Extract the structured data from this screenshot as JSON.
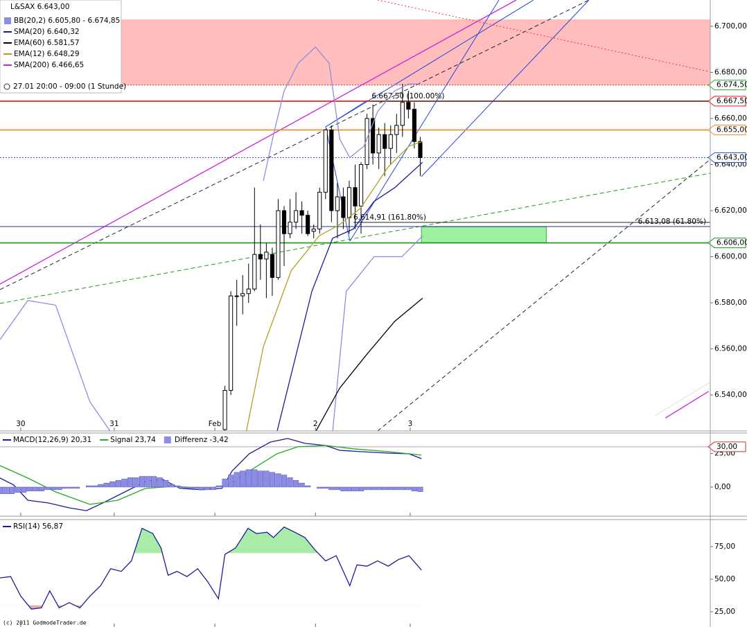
{
  "chart_data": [
    {
      "type": "candlestick",
      "title": "L&SAX 6.643,00",
      "subtitle": "27.01 20:00 - 09:00 (1 Stunde)",
      "xlim": [
        0,
        120
      ],
      "ylim": [
        6524.4,
        6711.4
      ],
      "xticks": [
        {
          "value": 3.5,
          "label": "30"
        },
        {
          "value": 19.3,
          "label": "31"
        },
        {
          "value": 36.3,
          "label": "Feb"
        },
        {
          "value": 53.3,
          "label": "2"
        },
        {
          "value": 69.3,
          "label": "3"
        }
      ],
      "yticks": [
        {
          "value": 6540,
          "label": "6.540,00"
        },
        {
          "value": 6560,
          "label": "6.560,00"
        },
        {
          "value": 6580,
          "label": "6.580,00"
        },
        {
          "value": 6600,
          "label": "6.600,00"
        },
        {
          "value": 6620,
          "label": "6.620,00"
        },
        {
          "value": 6640,
          "label": "6.640,00"
        },
        {
          "value": 6660,
          "label": "6.660,00"
        },
        {
          "value": 6680,
          "label": "6.680,00"
        },
        {
          "value": 6700,
          "label": "6.700,00"
        }
      ],
      "up_color": "#ffffff",
      "down_color": "#000000",
      "x": [
        38,
        39,
        40,
        41,
        42,
        43,
        44,
        45,
        46,
        47,
        48,
        49,
        50,
        51,
        52,
        53,
        54,
        55,
        56,
        57,
        58,
        59,
        60,
        61,
        62,
        63,
        64,
        65,
        66,
        67,
        68,
        69,
        70,
        71
      ],
      "open": [
        6525,
        6542,
        6583,
        6583,
        6584,
        6586,
        6601,
        6599,
        6601,
        6591,
        6620,
        6610,
        6615,
        6620,
        6618,
        6611,
        6612,
        6628,
        6655,
        6620,
        6626,
        6617,
        6630,
        6622,
        6640,
        6660,
        6645,
        6653,
        6647,
        6653,
        6657,
        6667,
        6664,
        6650
      ],
      "high": [
        6544,
        6585,
        6590,
        6592,
        6597,
        6630,
        6614,
        6606,
        6604,
        6625,
        6622,
        6625,
        6628,
        6624,
        6620,
        6614,
        6630,
        6655,
        6657,
        6632,
        6630,
        6633,
        6640,
        6641,
        6662,
        6666,
        6656,
        6658,
        6657,
        6662,
        6675,
        6672,
        6667,
        6652
      ],
      "low": [
        6520,
        6540,
        6570,
        6575,
        6580,
        6585,
        6590,
        6582,
        6583,
        6590,
        6596,
        6608,
        6612,
        6610,
        6609,
        6608,
        6610,
        6625,
        6615,
        6608,
        6612,
        6610,
        6612,
        6610,
        6638,
        6640,
        6638,
        6635,
        6640,
        6645,
        6652,
        6660,
        6647,
        6635
      ],
      "close": [
        6542,
        6583,
        6583,
        6584,
        6586,
        6601,
        6599,
        6602,
        6591,
        6620,
        6610,
        6615,
        6620,
        6618,
        6610,
        6612,
        6628,
        6655,
        6620,
        6626,
        6617,
        6630,
        6622,
        6640,
        6660,
        6645,
        6653,
        6647,
        6653,
        6657,
        6667,
        6664,
        6650,
        6643
      ],
      "series": [
        {
          "name": "BB(20,2) 6.605,80 - 6.674,85",
          "color": "#8c8ce0",
          "legend_shape": "square",
          "bands": [
            {
              "x": [
                44.5,
                46.3,
                48,
                50.4,
                53.3,
                55.6,
                57.4,
                59.1,
                61.5,
                63.8,
                66.7,
                69.1,
                70.8
              ],
              "values": [
                6633,
                6654,
                6672,
                6684,
                6691,
                6684,
                6651,
                6643,
                6648,
                6663,
                6672,
                6675,
                6675
              ]
            },
            {
              "x": [
                0,
                4.7,
                9.4,
                15.2,
                18.7,
                37,
                56.2,
                58.5,
                63.2,
                67.9,
                71.4
              ],
              "values": [
                6564,
                6581,
                6579,
                6537,
                6524,
                null,
                6524,
                6585,
                6600,
                6600,
                6609
              ]
            }
          ]
        },
        {
          "name": "SMA(20) 6.640,32",
          "color": "#1a1a9a",
          "x": [
            46.8,
            49.2,
            52.7,
            56.2,
            59.7,
            63.2,
            66.7,
            71.4
          ],
          "values": [
            6524,
            6549,
            6585,
            6608,
            6612,
            6624,
            6630,
            6641
          ]
        },
        {
          "name": "EMA(60) 6.581,57",
          "color": "#000000",
          "x": [
            53.3,
            57.4,
            62.1,
            66.7,
            71.4
          ],
          "values": [
            6524,
            6543,
            6558,
            6572,
            6582
          ]
        },
        {
          "name": "EMA(12) 6.648,29",
          "color": "#b0a020",
          "x": [
            41.6,
            44.5,
            49.2,
            53.9,
            57.4,
            60.9,
            65.6,
            69.1,
            71.4
          ],
          "values": [
            6524,
            6561,
            6594,
            6609,
            6614,
            6621,
            6639,
            6648,
            6650
          ]
        },
        {
          "name": "SMA(200) 6.466,65",
          "color": "#cc22dd",
          "x": [
            112.4,
            119.7
          ],
          "values": [
            6530,
            6541.5
          ]
        }
      ],
      "zones": [
        {
          "from": 6674.5,
          "to": 6703,
          "start": 20.5,
          "end": 120,
          "color": "#ffbdbd"
        },
        {
          "from": 6606,
          "to": 6613,
          "start": 71.2,
          "end": 92.3,
          "color": "#9df09d"
        }
      ],
      "levels": [
        {
          "value": 6674.5,
          "label": "6.674,50",
          "color": "#cc3333",
          "style": "dotted",
          "tag_color": "#22aa22"
        },
        {
          "value": 6667.5,
          "label": "6.667,50",
          "color": "#ee1111",
          "style": "solid",
          "tag_color": "#ee1111"
        },
        {
          "value": 6655,
          "label": "6.655,00",
          "color": "#ee8822",
          "style": "solid",
          "tag_color": "#ee8822"
        },
        {
          "value": 6643,
          "label": "6.643,00",
          "color": "#3355cc",
          "style": "dotted",
          "tag_color": "#3355cc"
        },
        {
          "value": 6606,
          "label": "6.606,00",
          "color": "#119911",
          "style": "solid",
          "tag_color": "#119911"
        }
      ],
      "annotations": [
        {
          "text": "6.667,50 (100.00%)",
          "value": 6667.5,
          "x": 62.8,
          "anchor": "start"
        },
        {
          "text": "6.614,91 (161.80%)",
          "value": 6614.91,
          "x": 59.7,
          "anchor": "start"
        },
        {
          "text": "6.613,08 (61.80%)",
          "value": 6613.08,
          "x": 0,
          "anchor": "end",
          "color": "#223388"
        }
      ]
    },
    {
      "type": "line",
      "ylim": [
        -21.7,
        40.3
      ],
      "yticks": [
        {
          "value": 0,
          "label": "0,00"
        },
        {
          "value": 25,
          "label": "25,00"
        }
      ],
      "levels": [
        {
          "value": 30,
          "label": "30,00",
          "color": "#aaaaaa",
          "style": "solid",
          "tag_color": "#cc3333"
        }
      ],
      "series": [
        {
          "name": "MACD(12,26,9) 20,31",
          "color": "#1a1a9a",
          "x": [
            0,
            2.3,
            4.7,
            8.2,
            11.7,
            14.6,
            17.6,
            21.1,
            24.6,
            27.5,
            30.4,
            34,
            37.5,
            39.2,
            42.1,
            45.7,
            48.6,
            51.5,
            55,
            57.4,
            60.9,
            65.6,
            69.1,
            71.2
          ],
          "values": [
            6.7,
            1.6,
            -9.8,
            -11.9,
            -15.5,
            -17.6,
            -11.4,
            -3.6,
            4.1,
            5.7,
            -1,
            -2,
            -1,
            11.9,
            24.8,
            33.6,
            36.2,
            32.6,
            31,
            27.4,
            26.4,
            25.3,
            24.8,
            21.2
          ]
        },
        {
          "name": "Signal 23,74",
          "color": "#22aa22",
          "x": [
            0,
            4.7,
            9.4,
            15.2,
            19.9,
            24.6,
            29.3,
            35.1,
            38.6,
            42.1,
            46.8,
            50.3,
            55,
            59.7,
            65.6,
            71.2
          ],
          "values": [
            16,
            6.7,
            -3.6,
            -12.9,
            -9.8,
            -1,
            0.5,
            -1,
            1.6,
            11.9,
            24.8,
            30,
            31,
            28.5,
            26.4,
            23.8
          ]
        },
        {
          "name": "Differenz -3,42",
          "type": "bar",
          "color": "#8c8ce8",
          "x": [
            0,
            1,
            2,
            3,
            4,
            5,
            6,
            7,
            8,
            9,
            10,
            11,
            12,
            13,
            14,
            15,
            16,
            17,
            18,
            19,
            20,
            21,
            22,
            23,
            24,
            25,
            26,
            27,
            28,
            29,
            30,
            31,
            32,
            33,
            34,
            35,
            36,
            37,
            38,
            39,
            40,
            41,
            42,
            43,
            44,
            45,
            46,
            47,
            48,
            49,
            50,
            51,
            52,
            53,
            54,
            55,
            56,
            57,
            58,
            59,
            60,
            61,
            62,
            63,
            64,
            65,
            66,
            67,
            68,
            69,
            70,
            71
          ],
          "values": [
            -5,
            -5,
            -5,
            -4,
            -4,
            -3,
            -3,
            -3,
            -2,
            -2,
            -2,
            -1,
            -1,
            -1,
            0,
            1,
            1,
            2,
            3,
            4,
            5,
            6,
            7,
            7,
            8,
            8,
            8,
            7,
            5,
            2,
            1,
            -1,
            -1,
            -1,
            -2,
            -2,
            -2,
            1,
            6,
            9,
            11,
            12,
            13,
            13,
            12,
            12,
            11,
            10,
            9,
            7,
            5,
            3,
            1,
            0,
            -1,
            -1,
            -2,
            -2,
            -3,
            -3,
            -3,
            -3,
            -2,
            -2,
            -2,
            -2,
            -2,
            -2,
            -2,
            -2,
            -3,
            -3.42
          ]
        }
      ]
    },
    {
      "type": "line",
      "ylim": [
        13.3,
        95.7
      ],
      "yticks": [
        {
          "value": 25,
          "label": "25,00"
        },
        {
          "value": 50,
          "label": "50,00"
        },
        {
          "value": 75,
          "label": "75,00"
        }
      ],
      "zones": {
        "upper": 70,
        "lower": 30,
        "upper_color": "#a8eca8",
        "lower_color": "#f0a8a8"
      },
      "series": [
        {
          "name": "RSI(14) 56,87",
          "color": "#1a1a9a",
          "x": [
            0,
            1.8,
            3.5,
            5.3,
            7,
            8.4,
            10,
            11.7,
            13.5,
            15.2,
            17,
            18.7,
            20.5,
            22.2,
            24,
            25.8,
            27.2,
            28.4,
            29.9,
            31.6,
            33.4,
            35.1,
            36.9,
            38,
            39.8,
            41.9,
            43.3,
            45.1,
            46.2,
            48,
            49.8,
            51.5,
            53.3,
            55,
            56.8,
            59.1,
            60.3,
            62,
            63.8,
            65.6,
            67.3,
            69.1,
            71.2
          ],
          "values": [
            51,
            52,
            37,
            27,
            28,
            41,
            28,
            32,
            28,
            37,
            45,
            58,
            56,
            64,
            89,
            85,
            74,
            53,
            56,
            52,
            58,
            48,
            35,
            69,
            74,
            89,
            85,
            86,
            82,
            90,
            86,
            82,
            72,
            64,
            68,
            45,
            61,
            60,
            64,
            60,
            65,
            68,
            57
          ]
        }
      ]
    }
  ],
  "copyright": "(c) 2011 GodmodeTrader.de"
}
